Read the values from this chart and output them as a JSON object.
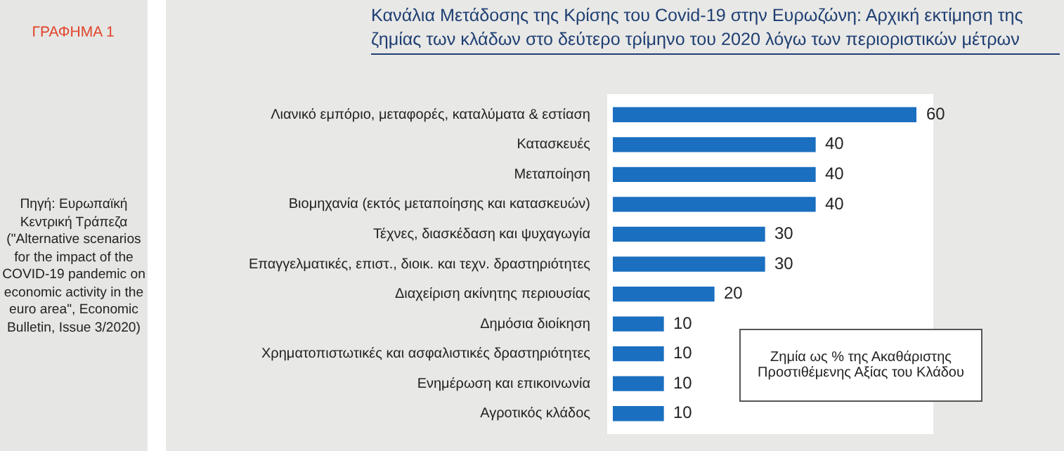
{
  "chart_data": {
    "type": "bar",
    "orientation": "horizontal",
    "title": "Κανάλια Μετάδοσης της Κρίσης του Covid-19 στην Ευρωζώνη: Αρχική εκτίμηση της ζημίας των κλάδων στο δεύτερο τρίμηνο του 2020 λόγω των περιοριστικών μέτρων",
    "categories": [
      "Λιανικό εμπόριο, μεταφορές, καταλύματα & εστίαση",
      "Κατασκευές",
      "Μεταποίηση",
      "Βιομηχανία (εκτός μεταποίησης και κατασκευών)",
      "Τέχνες, διασκέδαση και ψυχαγωγία",
      "Επαγγελματικές, επιστ., διοικ. και τεχν. δραστηριότητες",
      "Διαχείριση ακίνητης περιουσίας",
      "Δημόσια διοίκηση",
      "Χρηματοπιστωτικές και ασφαλιστικές δραστηριότητες",
      "Ενημέρωση και επικοινωνία",
      "Αγροτικός κλάδος"
    ],
    "values": [
      60,
      40,
      40,
      40,
      30,
      30,
      20,
      10,
      10,
      10,
      10
    ],
    "color": "#1a6fc0",
    "data_labels": true,
    "legend": false,
    "tick_labels": "y",
    "annotations": [
      "ΓΡΑΦΗΜΑ 1",
      "Πηγή: Ευρωπαϊκή Κεντρική Τράπεζα (\"Alternative scenarios for the impact of the COVID-19 pandemic on economic activity in the euro area\", Economic Bulletin, Issue 3/2020)",
      "Ζημία ως % της Ακαθάριστης Προστιθέμενης Αξίας του Κλάδου"
    ]
  }
}
